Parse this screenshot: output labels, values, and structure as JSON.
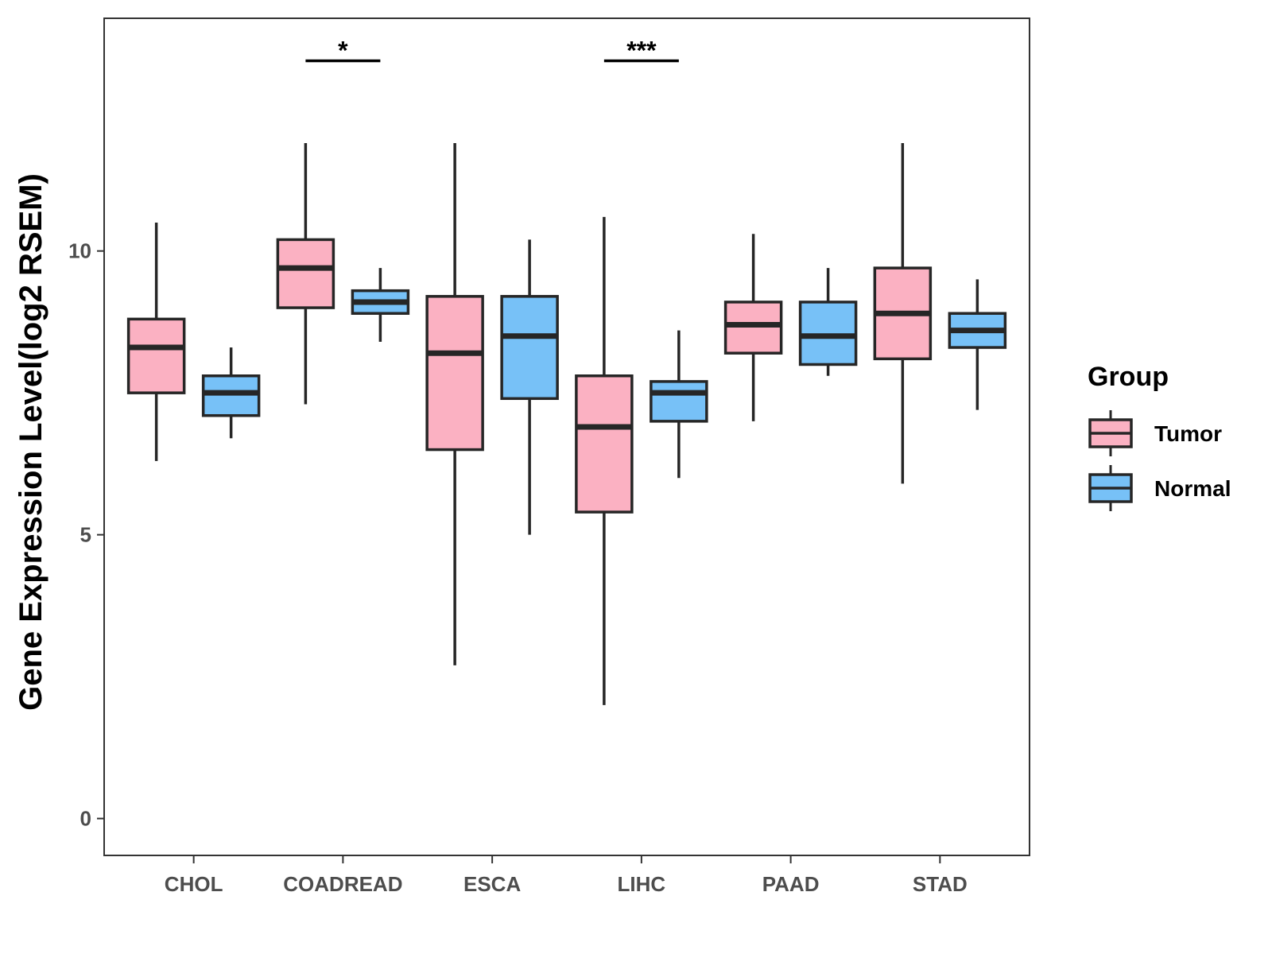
{
  "chart_data": {
    "type": "boxplot",
    "title": "",
    "xlabel": "",
    "ylabel": "Gene Expression Level(log2 RSEM)",
    "ylim": [
      -0.65,
      14.1
    ],
    "yticks": [
      0,
      5,
      10
    ],
    "ytick_labels": [
      "0",
      "5",
      "10"
    ],
    "categories": [
      "CHOL",
      "COADREAD",
      "ESCA",
      "LIHC",
      "PAAD",
      "STAD"
    ],
    "legend": {
      "title": "Group",
      "position": "right",
      "entries": [
        "Tumor",
        "Normal"
      ]
    },
    "colors": {
      "Tumor": "#FBB1C2",
      "Normal": "#77C1F7",
      "outline": "#262626",
      "panel_border": "#333333"
    },
    "series": [
      {
        "name": "Tumor",
        "boxes": [
          {
            "whisker_low": 6.3,
            "q1": 7.5,
            "median": 8.3,
            "q3": 8.8,
            "whisker_high": 10.5
          },
          {
            "whisker_low": 7.3,
            "q1": 9.0,
            "median": 9.7,
            "q3": 10.2,
            "whisker_high": 11.9
          },
          {
            "whisker_low": 2.7,
            "q1": 6.5,
            "median": 8.2,
            "q3": 9.2,
            "whisker_high": 11.9
          },
          {
            "whisker_low": 2.0,
            "q1": 5.4,
            "median": 6.9,
            "q3": 7.8,
            "whisker_high": 10.6
          },
          {
            "whisker_low": 7.0,
            "q1": 8.2,
            "median": 8.7,
            "q3": 9.1,
            "whisker_high": 10.3
          },
          {
            "whisker_low": 5.9,
            "q1": 8.1,
            "median": 8.9,
            "q3": 9.7,
            "whisker_high": 11.9
          }
        ]
      },
      {
        "name": "Normal",
        "boxes": [
          {
            "whisker_low": 6.7,
            "q1": 7.1,
            "median": 7.5,
            "q3": 7.8,
            "whisker_high": 8.3
          },
          {
            "whisker_low": 8.4,
            "q1": 8.9,
            "median": 9.1,
            "q3": 9.3,
            "whisker_high": 9.7
          },
          {
            "whisker_low": 5.0,
            "q1": 7.4,
            "median": 8.5,
            "q3": 9.2,
            "whisker_high": 10.2
          },
          {
            "whisker_low": 6.0,
            "q1": 7.0,
            "median": 7.5,
            "q3": 7.7,
            "whisker_high": 8.6
          },
          {
            "whisker_low": 7.8,
            "q1": 8.0,
            "median": 8.5,
            "q3": 9.1,
            "whisker_high": 9.7
          },
          {
            "whisker_low": 7.2,
            "q1": 8.3,
            "median": 8.6,
            "q3": 8.9,
            "whisker_high": 9.5
          }
        ]
      }
    ],
    "annotations": [
      {
        "category": "COADREAD",
        "label": "*",
        "y": 13.35
      },
      {
        "category": "LIHC",
        "label": "***",
        "y": 13.35
      }
    ]
  }
}
